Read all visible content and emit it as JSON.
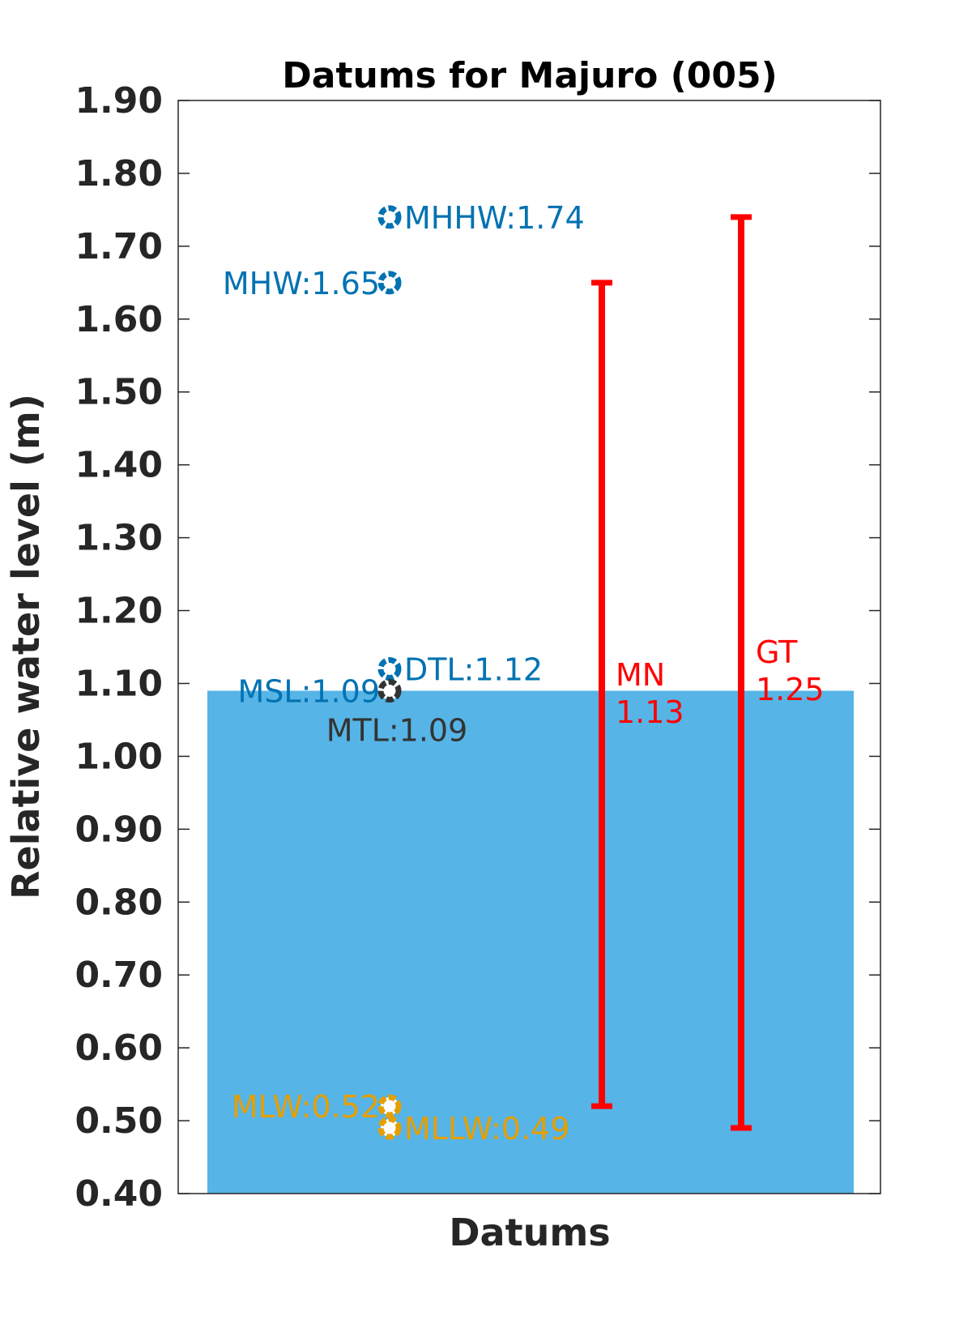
{
  "chart_data": {
    "type": "bar",
    "title": "Datums for Majuro (005)",
    "xlabel": "Datums",
    "ylabel": "Relative water level (m)",
    "ylim": [
      0.4,
      1.9
    ],
    "yticks": [
      "0.40",
      "0.50",
      "0.60",
      "0.70",
      "0.80",
      "0.90",
      "1.00",
      "1.10",
      "1.20",
      "1.30",
      "1.40",
      "1.50",
      "1.60",
      "1.70",
      "1.80",
      "1.90"
    ],
    "grid": false,
    "background_bar": {
      "label": "MSL",
      "value": 1.09,
      "color": "#56b4e6"
    },
    "datums": [
      {
        "name": "MHHW",
        "text": "MHHW:1.74",
        "value": 1.74,
        "color": "#0072b2",
        "label_side": "right"
      },
      {
        "name": "MHW",
        "text": "MHW:1.65",
        "value": 1.65,
        "color": "#0072b2",
        "label_side": "left"
      },
      {
        "name": "DTL",
        "text": "DTL:1.12",
        "value": 1.12,
        "color": "#0072b2",
        "label_side": "right"
      },
      {
        "name": "MSL",
        "text": "MSL:1.09",
        "value": 1.09,
        "color": "#0072b2",
        "label_side": "left"
      },
      {
        "name": "MTL",
        "text": "MTL:1.09",
        "value": 1.09,
        "color": "#333333",
        "label_side": "below"
      },
      {
        "name": "MLW",
        "text": "MLW:0.52",
        "value": 0.52,
        "color": "#e69f00",
        "label_side": "left"
      },
      {
        "name": "MLLW",
        "text": "MLLW:0.49",
        "value": 0.49,
        "color": "#e69f00",
        "label_side": "right"
      }
    ],
    "ranges": [
      {
        "name": "MN",
        "label_line1": "MN",
        "label_line2": "1.13",
        "low": 0.52,
        "high": 1.65,
        "color": "#ff0000"
      },
      {
        "name": "GT",
        "label_line1": "GT",
        "label_line2": "1.25",
        "low": 0.49,
        "high": 1.74,
        "color": "#ff0000"
      }
    ]
  }
}
